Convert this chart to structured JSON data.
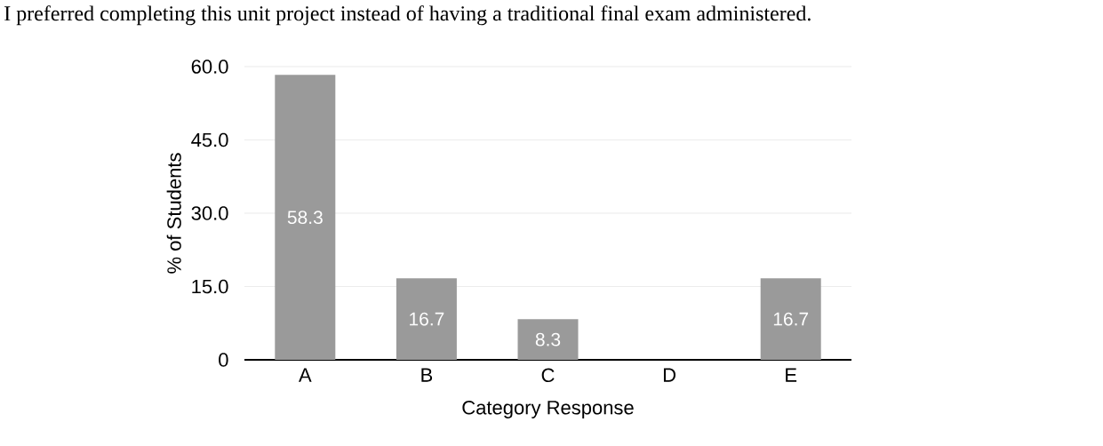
{
  "chart_data": {
    "type": "bar",
    "title": "I preferred completing this unit project instead of having a traditional final exam administered.",
    "xlabel": "Category Response",
    "ylabel": "% of Students",
    "categories": [
      "A",
      "B",
      "C",
      "D",
      "E"
    ],
    "values": [
      58.3,
      16.7,
      8.3,
      0,
      16.7
    ],
    "value_labels": [
      "58.3",
      "16.7",
      "8.3",
      null,
      "16.7"
    ],
    "color": "#9a9a9a",
    "ylim": [
      0,
      60
    ],
    "yticks": [
      0,
      {
        "value": 15,
        "label": "15.0"
      },
      {
        "value": 30,
        "label": "30.0"
      },
      {
        "value": 45,
        "label": "45.0"
      },
      {
        "value": 60,
        "label": "60.0"
      }
    ],
    "grid": "y"
  }
}
